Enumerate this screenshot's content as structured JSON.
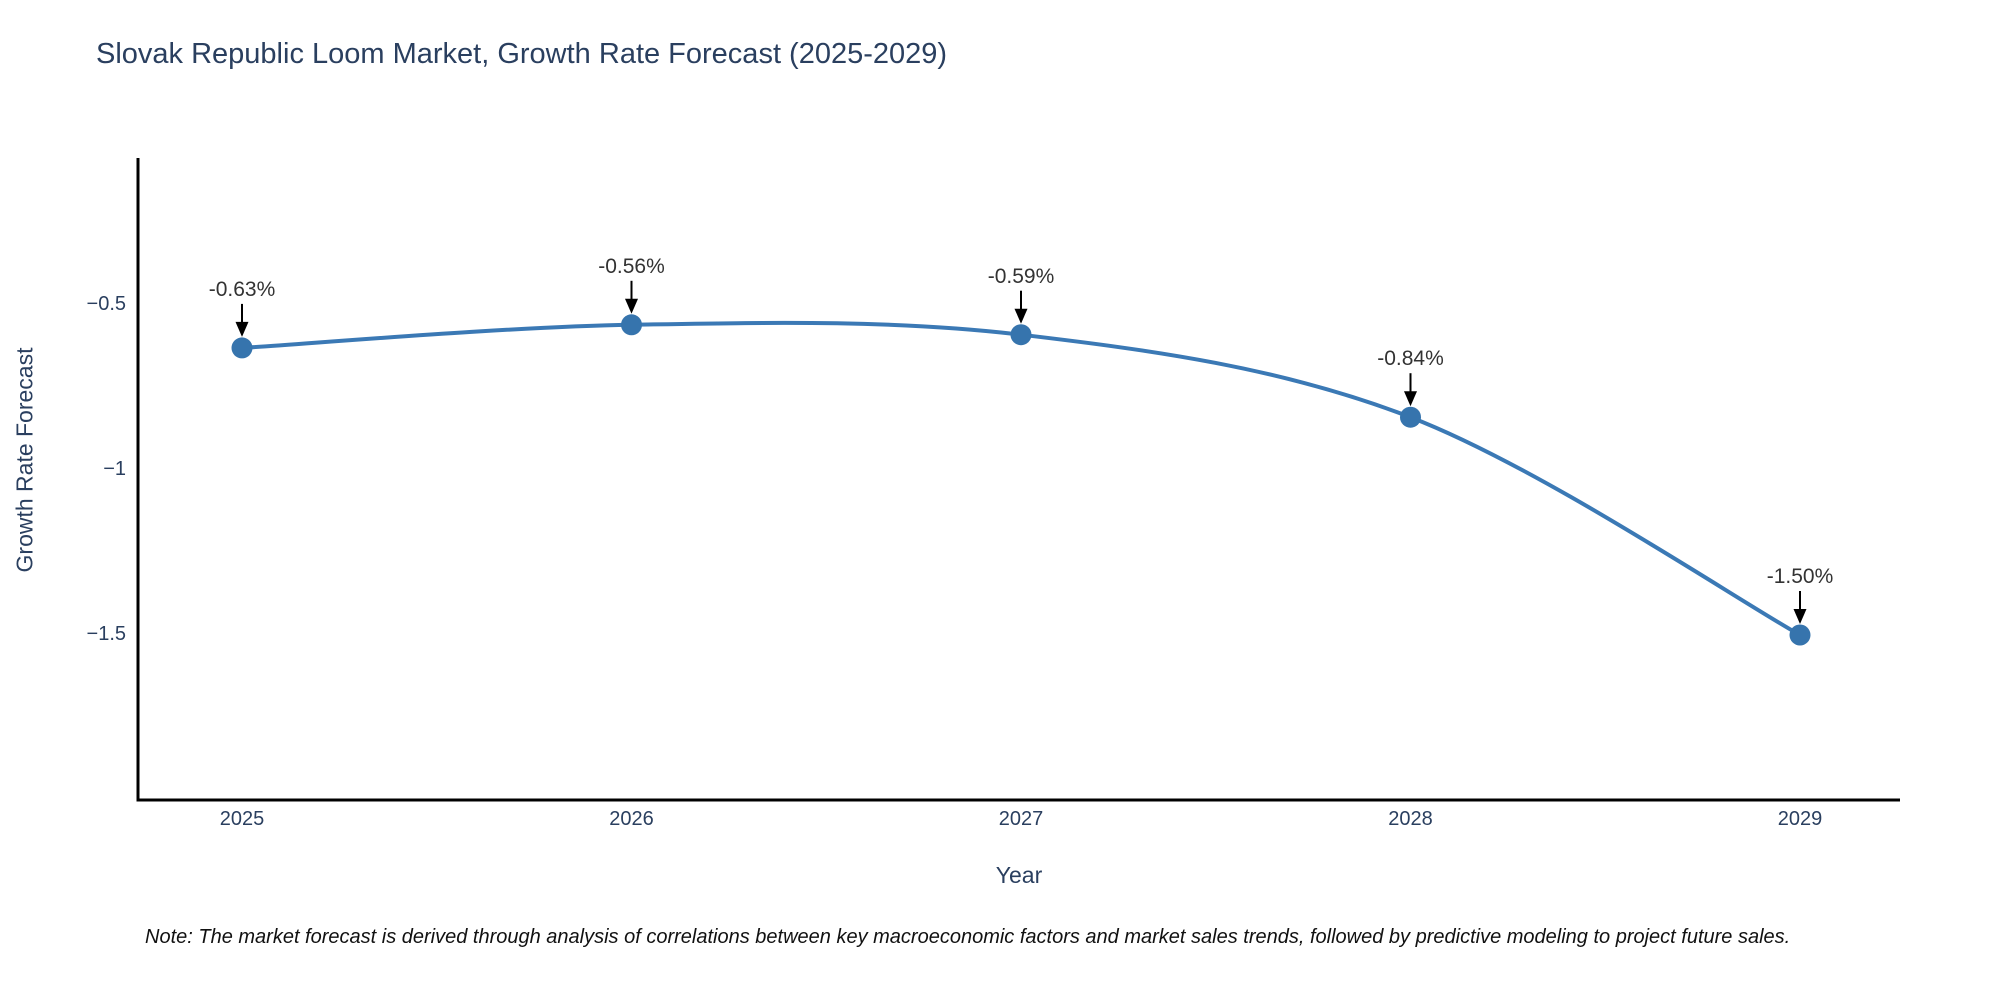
{
  "title": "Slovak Republic Loom Market, Growth Rate Forecast (2025-2029)",
  "note": "Note: The market forecast is derived through analysis of correlations between key macroeconomic factors and market sales trends, followed by predictive modeling to project future sales.",
  "chart_data": {
    "type": "line",
    "title": "Slovak Republic Loom Market, Growth Rate Forecast (2025-2029)",
    "xlabel": "Year",
    "ylabel": "Growth Rate Forecast",
    "categories": [
      "2025",
      "2026",
      "2027",
      "2028",
      "2029"
    ],
    "series": [
      {
        "name": "Growth Rate Forecast",
        "values": [
          -0.63,
          -0.56,
          -0.59,
          -0.84,
          -1.5
        ]
      }
    ],
    "point_labels": [
      "-0.63%",
      "-0.56%",
      "-0.59%",
      "-0.84%",
      "-1.50%"
    ],
    "y_ticks": [
      {
        "label": "−0.5",
        "value": -0.5
      },
      {
        "label": "−1",
        "value": -1.0
      },
      {
        "label": "−1.5",
        "value": -1.5
      }
    ],
    "ylim": [
      -2.0,
      -0.06
    ],
    "line_shape": "spline",
    "grid": false,
    "legend": "none",
    "colors": {
      "line": "#3b79b5",
      "marker": "#3674ad",
      "axis": "#000000",
      "tick_text": "#2a3f5f",
      "annotation_text": "#333333",
      "arrow": "#000000",
      "background": "#ffffff"
    }
  }
}
